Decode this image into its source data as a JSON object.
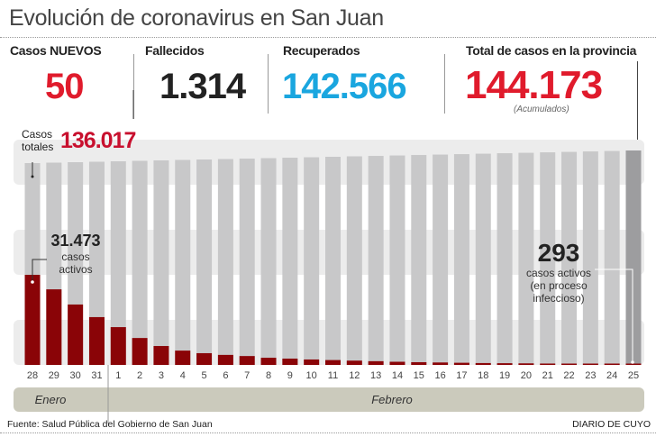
{
  "title": "Evolución de coronavirus en San Juan",
  "stats": {
    "new_cases": {
      "label": "Casos NUEVOS",
      "value": "50",
      "color": "#e01b2c"
    },
    "deaths": {
      "label": "Fallecidos",
      "value": "1.314",
      "color": "#222222"
    },
    "recovered": {
      "label": "Recuperados",
      "value": "142.566",
      "color": "#1aa6df"
    },
    "total": {
      "label": "Total de casos en la provincia",
      "value": "144.173",
      "note": "(Acumulados)",
      "color": "#e01b2c"
    }
  },
  "annotations": {
    "total_cases_label": "Casos totales",
    "total_cases_label_line1": "Casos",
    "total_cases_label_line2": "totales",
    "total_cases_value": "136.017",
    "first_active_value": "31.473",
    "first_active_line1": "casos",
    "first_active_line2": "activos",
    "last_active_value": "293",
    "last_active_line1": "casos activos",
    "last_active_line2": "(en proceso",
    "last_active_line3": "infeccioso)"
  },
  "months": {
    "january": "Enero",
    "february": "Febrero"
  },
  "footer": {
    "source": "Fuente: Salud Pública del Gobierno de San Juan",
    "brand": "DIARIO DE CUYO"
  },
  "chart_data": {
    "type": "bar",
    "categories": [
      "28",
      "29",
      "30",
      "31",
      "1",
      "2",
      "3",
      "4",
      "5",
      "6",
      "7",
      "8",
      "9",
      "10",
      "11",
      "12",
      "13",
      "14",
      "15",
      "16",
      "17",
      "18",
      "19",
      "20",
      "21",
      "22",
      "23",
      "24",
      "25"
    ],
    "series": [
      {
        "name": "Casos totales",
        "color": "#c8c8c9",
        "last_color": "#9d9d9f",
        "values": [
          136017,
          136310,
          136600,
          136890,
          137180,
          137470,
          137760,
          138050,
          138340,
          138630,
          138920,
          139210,
          139500,
          139790,
          140080,
          140370,
          140660,
          140950,
          141240,
          141530,
          141820,
          142110,
          142400,
          142690,
          142980,
          143270,
          143560,
          143850,
          144173
        ]
      },
      {
        "name": "casos activos",
        "color": "#8a0407",
        "values": [
          31473,
          26400,
          21100,
          16700,
          13200,
          9400,
          6600,
          5000,
          4100,
          3500,
          3100,
          2500,
          2200,
          1900,
          1700,
          1500,
          1300,
          1100,
          950,
          850,
          750,
          650,
          600,
          550,
          480,
          420,
          380,
          330,
          293
        ]
      }
    ],
    "grid": false
  }
}
